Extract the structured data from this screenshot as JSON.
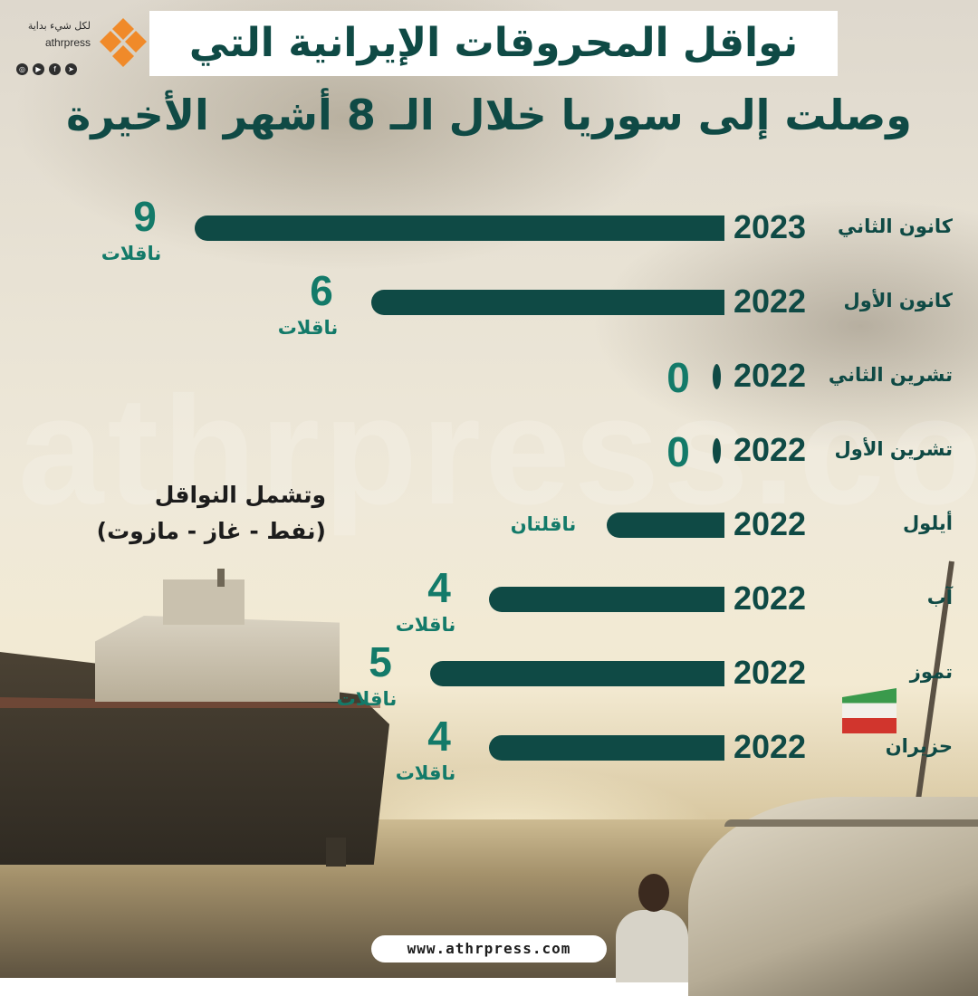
{
  "header": {
    "title_line1": "نواقل المحروقات الإيرانية التي",
    "title_line2": "وصلت إلى سوريا خلال الـ 8 أشهر الأخيرة"
  },
  "brand": {
    "slogan": "لكل شيء بداية",
    "name": "athrpress",
    "social_icons": [
      "instagram-icon",
      "youtube-icon",
      "facebook-icon",
      "telegram-icon"
    ],
    "watermark": "athrpress.com",
    "footer_url": "www.athrpress.com"
  },
  "note": {
    "line1": "وتشمل النواقل",
    "line2": "(نفط - غاز - مازوت)"
  },
  "colors": {
    "bar": "#0f4a45",
    "value_text": "#137a69",
    "logo_orange": "#f08a2a"
  },
  "chart_data": {
    "type": "bar",
    "orientation": "horizontal",
    "unit": "ناقلات",
    "max": 9,
    "rows": [
      {
        "month": "كانون الثاني",
        "year": "2023",
        "value": 9,
        "value_label": "9",
        "unit_label": "ناقلات"
      },
      {
        "month": "كانون الأول",
        "year": "2022",
        "value": 6,
        "value_label": "6",
        "unit_label": "ناقلات"
      },
      {
        "month": "تشرين الثاني",
        "year": "2022",
        "value": 0,
        "value_label": "0",
        "unit_label": ""
      },
      {
        "month": "تشرين الأول",
        "year": "2022",
        "value": 0,
        "value_label": "0",
        "unit_label": ""
      },
      {
        "month": "أيلول",
        "year": "2022",
        "value": 2,
        "value_label": "",
        "unit_label": "ناقلتان"
      },
      {
        "month": "آب",
        "year": "2022",
        "value": 4,
        "value_label": "4",
        "unit_label": "ناقلات"
      },
      {
        "month": "تموز",
        "year": "2022",
        "value": 5,
        "value_label": "5",
        "unit_label": "ناقلات"
      },
      {
        "month": "حزيران",
        "year": "2022",
        "value": 4,
        "value_label": "4",
        "unit_label": "ناقلات"
      }
    ]
  }
}
